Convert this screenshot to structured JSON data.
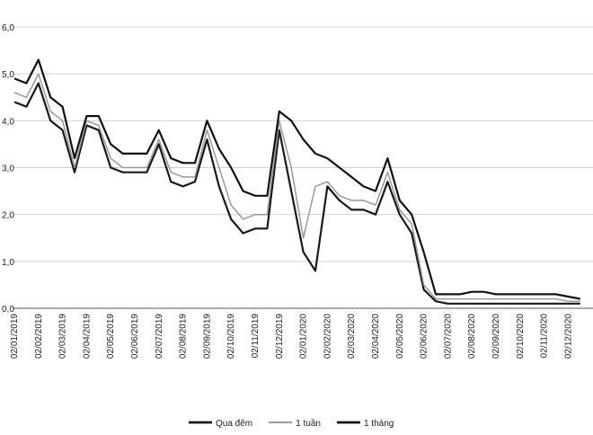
{
  "chart_data": {
    "type": "line",
    "categories": [
      "02/01/2019",
      null,
      "02/02/2019",
      null,
      "02/03/2019",
      null,
      "02/04/2019",
      null,
      "02/05/2019",
      null,
      "02/06/2019",
      null,
      "02/07/2019",
      null,
      "02/08/2019",
      null,
      "02/09/2019",
      null,
      "02/10/2019",
      null,
      "02/11/2019",
      null,
      "02/12/2019",
      null,
      "02/01/2020",
      null,
      "02/02/2020",
      null,
      "02/03/2020",
      null,
      "02/04/2020",
      null,
      "02/05/2020",
      null,
      "02/06/2020",
      null,
      "02/07/2020",
      null,
      "02/08/2020",
      null,
      "02/09/2020",
      null,
      "02/10/2020",
      null,
      "02/11/2020",
      null,
      "02/12/2020",
      null
    ],
    "series": [
      {
        "name": "Qua đêm",
        "color": "#1a1a1a",
        "width": 2.2,
        "values": [
          4.4,
          4.3,
          4.8,
          4.0,
          3.8,
          2.9,
          3.9,
          3.8,
          3.0,
          2.9,
          2.9,
          2.9,
          3.5,
          2.7,
          2.6,
          2.7,
          3.6,
          2.6,
          1.9,
          1.6,
          1.7,
          1.7,
          3.8,
          2.5,
          1.2,
          0.8,
          2.6,
          2.3,
          2.1,
          2.1,
          2.0,
          2.7,
          2.0,
          1.6,
          0.4,
          0.15,
          0.1,
          0.1,
          0.1,
          0.1,
          0.1,
          0.1,
          0.1,
          0.1,
          0.1,
          0.1,
          0.1,
          0.1
        ]
      },
      {
        "name": "1 tuần",
        "color": "#9a9a9a",
        "width": 1.5,
        "values": [
          4.6,
          4.5,
          5.0,
          4.2,
          4.0,
          3.0,
          4.0,
          3.9,
          3.2,
          3.0,
          3.0,
          3.0,
          3.6,
          2.9,
          2.8,
          2.8,
          3.8,
          3.0,
          2.2,
          1.9,
          2.0,
          2.0,
          4.0,
          3.0,
          1.5,
          2.6,
          2.7,
          2.4,
          2.3,
          2.3,
          2.2,
          2.9,
          2.1,
          1.8,
          0.5,
          0.2,
          0.2,
          0.2,
          0.2,
          0.2,
          0.2,
          0.2,
          0.2,
          0.2,
          0.2,
          0.2,
          0.15,
          0.15
        ]
      },
      {
        "name": "1 tháng",
        "color": "#111111",
        "width": 2.2,
        "values": [
          4.9,
          4.8,
          5.3,
          4.5,
          4.3,
          3.2,
          4.1,
          4.1,
          3.5,
          3.3,
          3.3,
          3.3,
          3.8,
          3.2,
          3.1,
          3.1,
          4.0,
          3.4,
          3.0,
          2.5,
          2.4,
          2.4,
          4.2,
          4.0,
          3.6,
          3.3,
          3.2,
          3.0,
          2.8,
          2.6,
          2.5,
          3.2,
          2.3,
          2.0,
          1.2,
          0.3,
          0.3,
          0.3,
          0.35,
          0.35,
          0.3,
          0.3,
          0.3,
          0.3,
          0.3,
          0.3,
          0.25,
          0.2
        ]
      }
    ],
    "ylim": [
      0,
      6
    ],
    "yticks": [
      {
        "value": 0,
        "label": "0,0"
      },
      {
        "value": 1,
        "label": "1,0"
      },
      {
        "value": 2,
        "label": "2,0"
      },
      {
        "value": 3,
        "label": "3,0"
      },
      {
        "value": 4,
        "label": "4,0"
      },
      {
        "value": 5,
        "label": "5,0"
      },
      {
        "value": 6,
        "label": "6,0"
      }
    ],
    "grid": true,
    "legend": "bottom"
  }
}
